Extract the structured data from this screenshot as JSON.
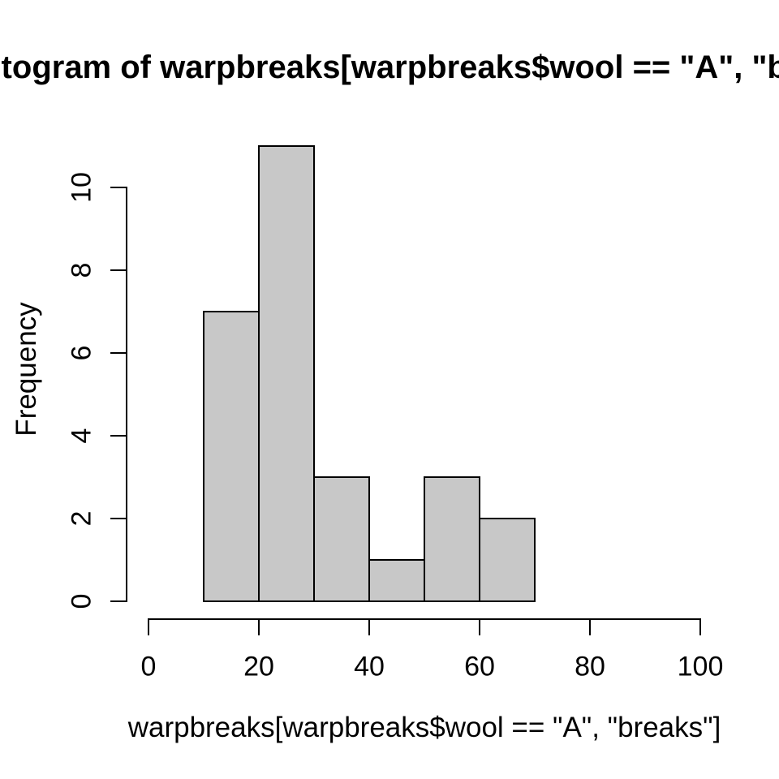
{
  "title": "Histogram of warpbreaks[warpbreaks$wool == \"A\", \"breaks\"]",
  "chart_data": {
    "type": "bar",
    "subtype": "histogram",
    "title": "Histogram of warpbreaks[warpbreaks$wool == \"A\", \"breaks\"]",
    "xlabel": "warpbreaks[warpbreaks$wool == \"A\", \"breaks\"]",
    "ylabel": "Frequency",
    "bins": [
      {
        "from": 10,
        "to": 20,
        "count": 7
      },
      {
        "from": 20,
        "to": 30,
        "count": 11
      },
      {
        "from": 30,
        "to": 40,
        "count": 3
      },
      {
        "from": 40,
        "to": 50,
        "count": 1
      },
      {
        "from": 50,
        "to": 60,
        "count": 3
      },
      {
        "from": 60,
        "to": 70,
        "count": 2
      }
    ],
    "x_ticks": [
      0,
      20,
      40,
      60,
      80,
      100
    ],
    "y_ticks": [
      0,
      2,
      4,
      6,
      8,
      10
    ],
    "xlim": [
      0,
      100
    ],
    "ylim": [
      0,
      10
    ],
    "grid": false,
    "legend": "none",
    "bar_fill": "#C8C8C8",
    "bar_border": "#000000",
    "axis_color": "#000000",
    "text_color": "#000000",
    "background": "#FFFFFF"
  }
}
